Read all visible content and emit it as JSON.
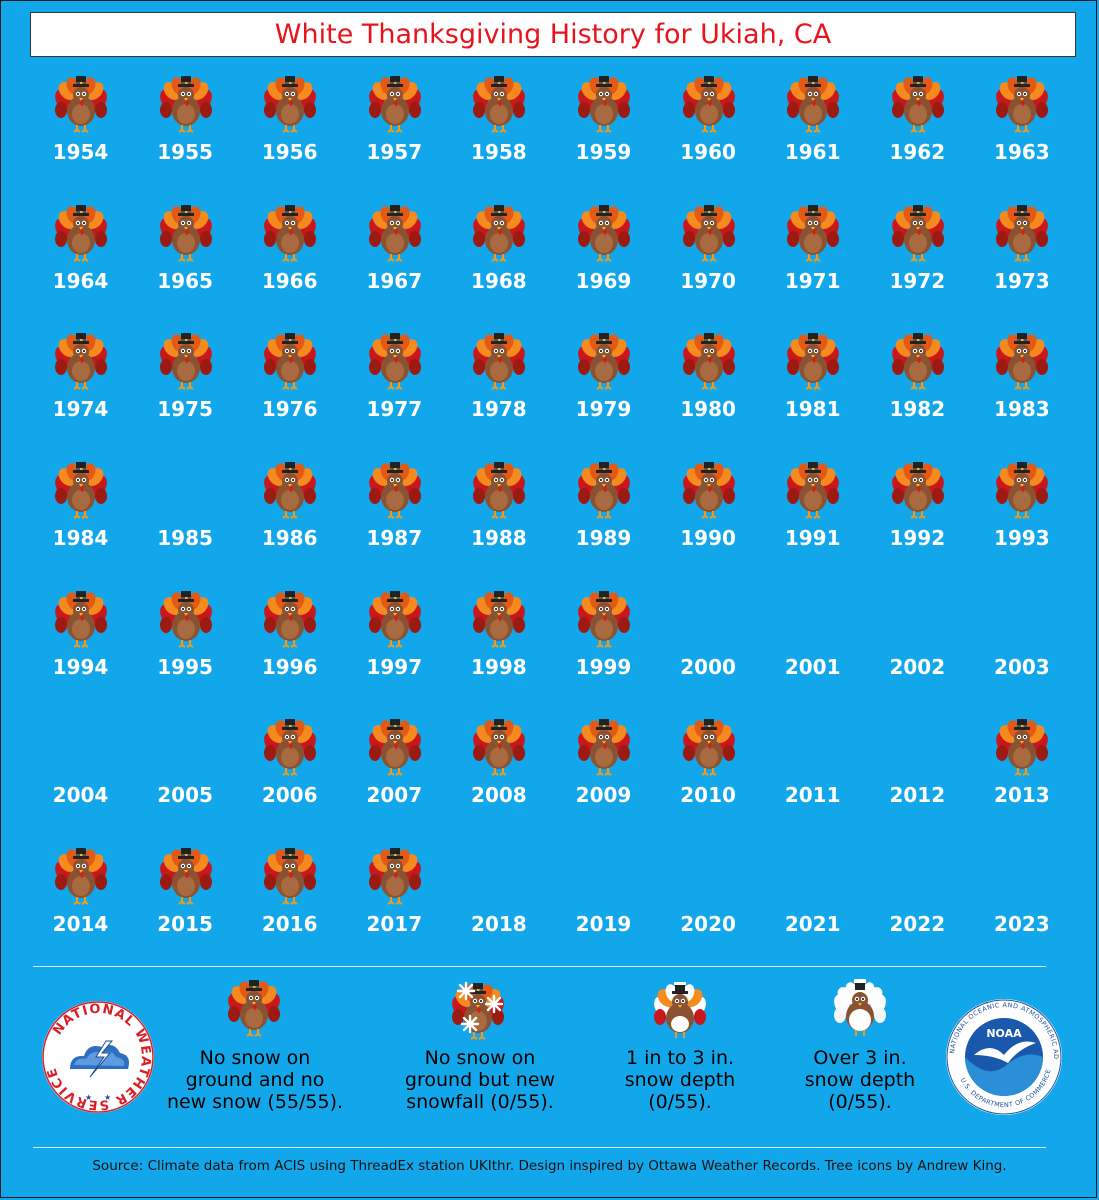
{
  "title": "White Thanksgiving History for Ukiah, CA",
  "colors": {
    "background": "#12a7ea",
    "title_text": "#e8141c",
    "year_text": "#ffffff"
  },
  "years": [
    {
      "year": "1954",
      "icon": "turkey-icon"
    },
    {
      "year": "1955",
      "icon": "turkey-icon"
    },
    {
      "year": "1956",
      "icon": "turkey-icon"
    },
    {
      "year": "1957",
      "icon": "turkey-icon"
    },
    {
      "year": "1958",
      "icon": "turkey-icon"
    },
    {
      "year": "1959",
      "icon": "turkey-icon"
    },
    {
      "year": "1960",
      "icon": "turkey-icon"
    },
    {
      "year": "1961",
      "icon": "turkey-icon"
    },
    {
      "year": "1962",
      "icon": "turkey-icon"
    },
    {
      "year": "1963",
      "icon": "turkey-icon"
    },
    {
      "year": "1964",
      "icon": "turkey-icon"
    },
    {
      "year": "1965",
      "icon": "turkey-icon"
    },
    {
      "year": "1966",
      "icon": "turkey-icon"
    },
    {
      "year": "1967",
      "icon": "turkey-icon"
    },
    {
      "year": "1968",
      "icon": "turkey-icon"
    },
    {
      "year": "1969",
      "icon": "turkey-icon"
    },
    {
      "year": "1970",
      "icon": "turkey-icon"
    },
    {
      "year": "1971",
      "icon": "turkey-icon"
    },
    {
      "year": "1972",
      "icon": "turkey-icon"
    },
    {
      "year": "1973",
      "icon": "turkey-icon"
    },
    {
      "year": "1974",
      "icon": "turkey-icon"
    },
    {
      "year": "1975",
      "icon": "turkey-icon"
    },
    {
      "year": "1976",
      "icon": "turkey-icon"
    },
    {
      "year": "1977",
      "icon": "turkey-icon"
    },
    {
      "year": "1978",
      "icon": "turkey-icon"
    },
    {
      "year": "1979",
      "icon": "turkey-icon"
    },
    {
      "year": "1980",
      "icon": "turkey-icon"
    },
    {
      "year": "1981",
      "icon": "turkey-icon"
    },
    {
      "year": "1982",
      "icon": "turkey-icon"
    },
    {
      "year": "1983",
      "icon": "turkey-icon"
    },
    {
      "year": "1984",
      "icon": "turkey-icon"
    },
    {
      "year": "1985",
      "icon": "none"
    },
    {
      "year": "1986",
      "icon": "turkey-icon"
    },
    {
      "year": "1987",
      "icon": "turkey-icon"
    },
    {
      "year": "1988",
      "icon": "turkey-icon"
    },
    {
      "year": "1989",
      "icon": "turkey-icon"
    },
    {
      "year": "1990",
      "icon": "turkey-icon"
    },
    {
      "year": "1991",
      "icon": "turkey-icon"
    },
    {
      "year": "1992",
      "icon": "turkey-icon"
    },
    {
      "year": "1993",
      "icon": "turkey-icon"
    },
    {
      "year": "1994",
      "icon": "turkey-icon"
    },
    {
      "year": "1995",
      "icon": "turkey-icon"
    },
    {
      "year": "1996",
      "icon": "turkey-icon"
    },
    {
      "year": "1997",
      "icon": "turkey-icon"
    },
    {
      "year": "1998",
      "icon": "turkey-icon"
    },
    {
      "year": "1999",
      "icon": "turkey-icon"
    },
    {
      "year": "2000",
      "icon": "none"
    },
    {
      "year": "2001",
      "icon": "none"
    },
    {
      "year": "2002",
      "icon": "none"
    },
    {
      "year": "2003",
      "icon": "none"
    },
    {
      "year": "2004",
      "icon": "none"
    },
    {
      "year": "2005",
      "icon": "none"
    },
    {
      "year": "2006",
      "icon": "turkey-icon"
    },
    {
      "year": "2007",
      "icon": "turkey-icon"
    },
    {
      "year": "2008",
      "icon": "turkey-icon"
    },
    {
      "year": "2009",
      "icon": "turkey-icon"
    },
    {
      "year": "2010",
      "icon": "turkey-icon"
    },
    {
      "year": "2011",
      "icon": "none"
    },
    {
      "year": "2012",
      "icon": "none"
    },
    {
      "year": "2013",
      "icon": "turkey-icon"
    },
    {
      "year": "2014",
      "icon": "turkey-icon"
    },
    {
      "year": "2015",
      "icon": "turkey-icon"
    },
    {
      "year": "2016",
      "icon": "turkey-icon"
    },
    {
      "year": "2017",
      "icon": "turkey-icon"
    },
    {
      "year": "2018",
      "icon": "none"
    },
    {
      "year": "2019",
      "icon": "none"
    },
    {
      "year": "2020",
      "icon": "none"
    },
    {
      "year": "2021",
      "icon": "none"
    },
    {
      "year": "2022",
      "icon": "none"
    },
    {
      "year": "2023",
      "icon": "none"
    }
  ],
  "legend": [
    {
      "icon": "turkey-icon",
      "line1": "No snow on",
      "line2": "ground and no",
      "line3": "new snow (55/55)."
    },
    {
      "icon": "snowflake-turkey-icon",
      "line1": "No snow on",
      "line2": "ground but new",
      "line3": "snowfall (0/55)."
    },
    {
      "icon": "snow-turkey-icon",
      "line1": "1 in to 3 in.",
      "line2": "snow depth",
      "line3": "(0/55)."
    },
    {
      "icon": "snow-covered-turkey-icon",
      "line1": "Over 3 in.",
      "line2": "snow depth",
      "line3": "(0/55)."
    }
  ],
  "logos": {
    "nws_text": "NATIONAL WEATHER SERVICE",
    "noaa_text": "NOAA",
    "noaa_ring_top": "NATIONAL OCEANIC AND ATMOSPHERIC ADMINISTRATION",
    "noaa_ring_bottom": "U.S. DEPARTMENT OF COMMERCE"
  },
  "source": "Source: Climate data from ACIS using ThreadEx station UKIthr. Design inspired by Ottawa Weather Records. Tree icons by Andrew King."
}
